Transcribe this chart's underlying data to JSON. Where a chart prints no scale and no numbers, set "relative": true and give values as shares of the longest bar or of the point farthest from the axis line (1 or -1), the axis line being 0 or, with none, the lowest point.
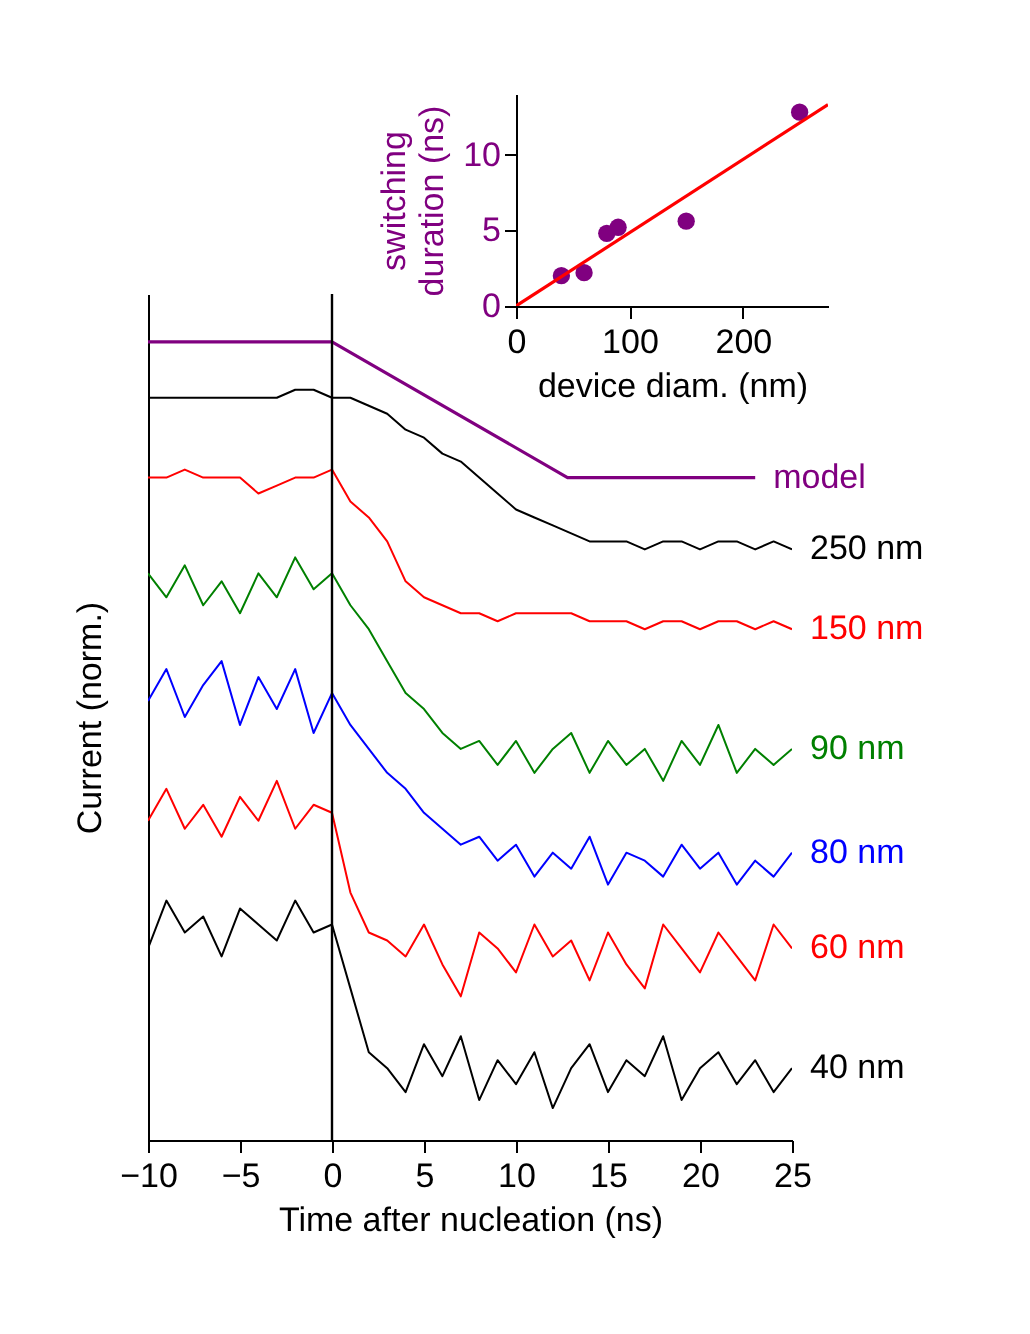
{
  "chart_data": [
    {
      "type": "line",
      "relative": true,
      "tick_labels": "x",
      "xlabel": "Time after nucleation (ns)",
      "ylabel": "Current (norm.)",
      "xlim": [
        -10,
        25
      ],
      "xticks": [
        -10,
        -5,
        0,
        5,
        10,
        15,
        20,
        25
      ],
      "legend": false,
      "x": [
        -10,
        -9,
        -8,
        -7,
        -6,
        -5,
        -4,
        -3,
        -2,
        -1,
        0,
        1,
        2,
        3,
        4,
        5,
        6,
        7,
        8,
        9,
        10,
        11,
        12,
        13,
        14,
        15,
        16,
        17,
        18,
        19,
        20,
        21,
        22,
        23,
        24,
        25
      ],
      "ref_lines": [
        {
          "axis": "x",
          "value": 0,
          "color": "#000000"
        }
      ],
      "series": [
        {
          "name": "model",
          "color": "#800080",
          "x": [
            -10,
            0,
            12.8,
            23
          ],
          "values": [
            1,
            1,
            0.83,
            0.83
          ]
        },
        {
          "name": "250 nm",
          "color": "#000000",
          "values": [
            0.93,
            0.93,
            0.93,
            0.93,
            0.93,
            0.93,
            0.93,
            0.93,
            0.94,
            0.94,
            0.93,
            0.93,
            0.92,
            0.91,
            0.89,
            0.88,
            0.86,
            0.85,
            0.83,
            0.81,
            0.79,
            0.78,
            0.77,
            0.76,
            0.75,
            0.75,
            0.75,
            0.74,
            0.75,
            0.75,
            0.74,
            0.75,
            0.75,
            0.74,
            0.75,
            0.74
          ]
        },
        {
          "name": "150 nm",
          "color": "#ff0000",
          "values": [
            0.83,
            0.83,
            0.84,
            0.83,
            0.83,
            0.83,
            0.81,
            0.82,
            0.83,
            0.83,
            0.84,
            0.8,
            0.78,
            0.75,
            0.7,
            0.68,
            0.67,
            0.66,
            0.66,
            0.65,
            0.66,
            0.66,
            0.66,
            0.66,
            0.65,
            0.65,
            0.65,
            0.64,
            0.65,
            0.65,
            0.64,
            0.65,
            0.65,
            0.64,
            0.65,
            0.64
          ]
        },
        {
          "name": "90 nm",
          "color": "#008000",
          "values": [
            0.71,
            0.68,
            0.72,
            0.67,
            0.7,
            0.66,
            0.71,
            0.68,
            0.73,
            0.69,
            0.71,
            0.67,
            0.64,
            0.6,
            0.56,
            0.54,
            0.51,
            0.49,
            0.5,
            0.47,
            0.5,
            0.46,
            0.49,
            0.51,
            0.46,
            0.5,
            0.47,
            0.49,
            0.45,
            0.5,
            0.47,
            0.52,
            0.46,
            0.49,
            0.47,
            0.49
          ]
        },
        {
          "name": "80 nm",
          "color": "#0000ff",
          "values": [
            0.55,
            0.59,
            0.53,
            0.57,
            0.6,
            0.52,
            0.58,
            0.54,
            0.59,
            0.51,
            0.56,
            0.52,
            0.49,
            0.46,
            0.44,
            0.41,
            0.39,
            0.37,
            0.38,
            0.35,
            0.37,
            0.33,
            0.36,
            0.34,
            0.38,
            0.32,
            0.36,
            0.35,
            0.33,
            0.37,
            0.34,
            0.36,
            0.32,
            0.35,
            0.33,
            0.36
          ]
        },
        {
          "name": "60 nm",
          "color": "#ff0000",
          "values": [
            0.4,
            0.44,
            0.39,
            0.42,
            0.38,
            0.43,
            0.4,
            0.45,
            0.39,
            0.42,
            0.41,
            0.31,
            0.26,
            0.25,
            0.23,
            0.27,
            0.22,
            0.18,
            0.26,
            0.24,
            0.21,
            0.27,
            0.23,
            0.25,
            0.2,
            0.26,
            0.22,
            0.19,
            0.27,
            0.24,
            0.21,
            0.26,
            0.23,
            0.2,
            0.27,
            0.24
          ]
        },
        {
          "name": "40 nm",
          "color": "#000000",
          "values": [
            0.24,
            0.3,
            0.26,
            0.28,
            0.23,
            0.29,
            0.27,
            0.25,
            0.3,
            0.26,
            0.27,
            0.19,
            0.11,
            0.09,
            0.06,
            0.12,
            0.08,
            0.13,
            0.05,
            0.1,
            0.07,
            0.11,
            0.04,
            0.09,
            0.12,
            0.06,
            0.1,
            0.08,
            0.13,
            0.05,
            0.09,
            0.11,
            0.07,
            0.1,
            0.06,
            0.09
          ]
        }
      ]
    },
    {
      "type": "scatter",
      "xlabel": "device diam. (nm)",
      "ylabel": "switching duration (ns)",
      "xlim": [
        0,
        275
      ],
      "xticks": [
        0,
        100,
        200
      ],
      "ylim": [
        0,
        14
      ],
      "yticks": [
        0,
        5,
        10
      ],
      "legend": false,
      "x": [
        40,
        60,
        80,
        90,
        150,
        250
      ],
      "series": [
        {
          "color": "#800080",
          "marker": "circle",
          "values": [
            2,
            2.2,
            4.8,
            5.2,
            5.6,
            12.8
          ]
        },
        {
          "type": "line",
          "color": "#ff0000",
          "x": [
            0,
            275
          ],
          "values": [
            0,
            13.3
          ]
        }
      ]
    }
  ]
}
